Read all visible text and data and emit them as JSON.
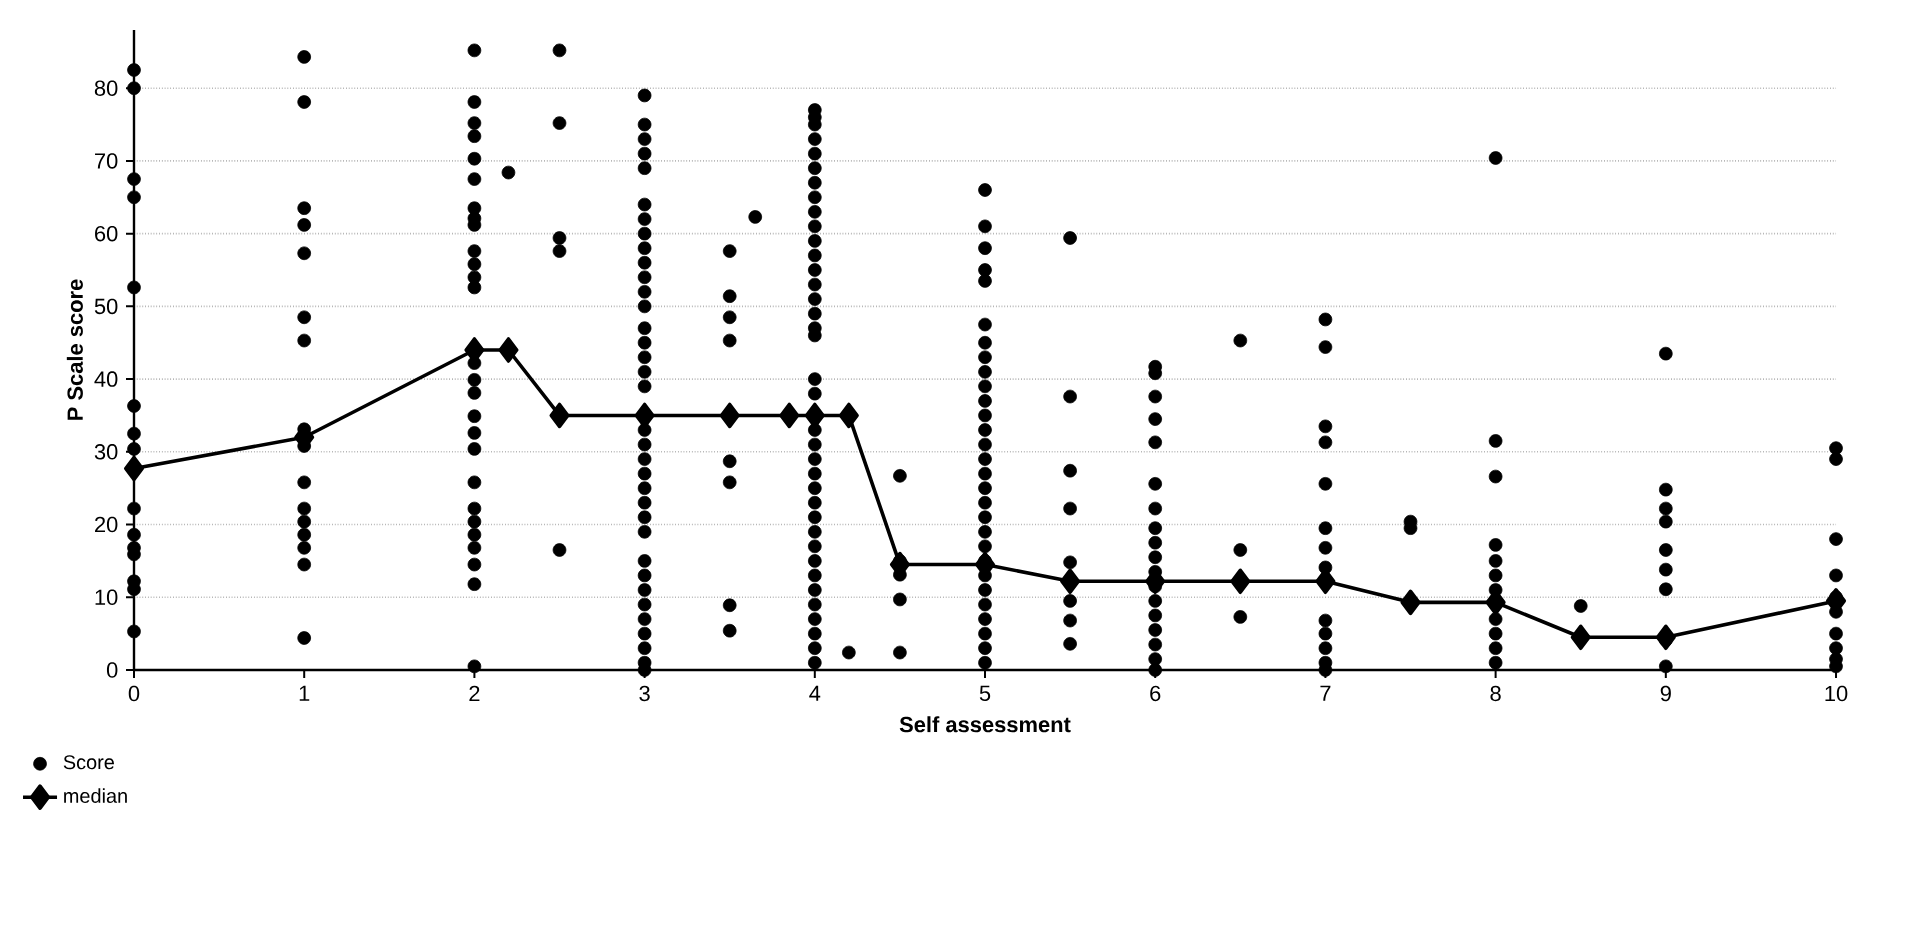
{
  "chart_data": {
    "type": "scatter",
    "xlabel": "Self assessment",
    "ylabel": "P Scale score",
    "xlim": [
      0,
      10
    ],
    "ylim": [
      0,
      88
    ],
    "xticks": [
      0,
      1,
      2,
      3,
      4,
      5,
      6,
      7,
      8,
      9,
      10
    ],
    "yticks": [
      0,
      10,
      20,
      30,
      40,
      50,
      60,
      70,
      80
    ],
    "grid": "y",
    "legend": "bottom left",
    "series": [
      {
        "name": "Score",
        "marker": "circle",
        "color": "#000000",
        "x": [
          0,
          0,
          0,
          0,
          0,
          0,
          0,
          0,
          0,
          0,
          0,
          0,
          0,
          0,
          0,
          1,
          1,
          1,
          1,
          1,
          1,
          1,
          1,
          1,
          1,
          1,
          1,
          1,
          1,
          1,
          1,
          2,
          2,
          2,
          2,
          2,
          2,
          2,
          2,
          2,
          2,
          2,
          2,
          2,
          2,
          2,
          2,
          2,
          2,
          2,
          2,
          2,
          2,
          2,
          2,
          2,
          2,
          2,
          2,
          2.2,
          2.5,
          2.5,
          2.5,
          2.5,
          2.5,
          3,
          3,
          3,
          3,
          3,
          3,
          3,
          3,
          3,
          3,
          3,
          3,
          3,
          3,
          3,
          3,
          3,
          3,
          3,
          3,
          3,
          3,
          3,
          3,
          3,
          3,
          3,
          3,
          3,
          3,
          3,
          3,
          3,
          3,
          3,
          3,
          3.5,
          3.5,
          3.5,
          3.5,
          3.5,
          3.5,
          3.5,
          3.5,
          3.65,
          4,
          4,
          4,
          4,
          4,
          4,
          4,
          4,
          4,
          4,
          4,
          4,
          4,
          4,
          4,
          4,
          4,
          4,
          4,
          4,
          4,
          4,
          4,
          4,
          4,
          4,
          4,
          4,
          4,
          4,
          4,
          4,
          4,
          4,
          4,
          4,
          4,
          4,
          4.2,
          4.5,
          4.5,
          4.5,
          4.5,
          4.5,
          5,
          5,
          5,
          5,
          5,
          5,
          5,
          5,
          5,
          5,
          5,
          5,
          5,
          5,
          5,
          5,
          5,
          5,
          5,
          5,
          5,
          5,
          5,
          5,
          5,
          5,
          5,
          5,
          5,
          5.5,
          5.5,
          5.5,
          5.5,
          5.5,
          5.5,
          5.5,
          5.5,
          5.5,
          6,
          6,
          6,
          6,
          6,
          6,
          6,
          6,
          6,
          6,
          6,
          6,
          6,
          6,
          6,
          6,
          6,
          6,
          6.5,
          6.5,
          6.5,
          7,
          7,
          7,
          7,
          7,
          7,
          7,
          7,
          7,
          7,
          7,
          7,
          7,
          7.5,
          7.5,
          8,
          8,
          8,
          8,
          8,
          8,
          8,
          8,
          8,
          8,
          8,
          8.5,
          9,
          9,
          9,
          9,
          9,
          9,
          9,
          9,
          9,
          10,
          10,
          10,
          10,
          10,
          10,
          10,
          10,
          10,
          10
        ],
        "values": [
          82.5,
          80,
          67.5,
          65,
          52.6,
          36.3,
          32.5,
          30.4,
          22.2,
          18.6,
          16.8,
          15.9,
          12.2,
          11.1,
          5.3,
          84.3,
          78.1,
          63.5,
          61.2,
          57.3,
          48.5,
          45.3,
          33.1,
          30.8,
          25.8,
          22.2,
          20.4,
          18.6,
          16.8,
          14.5,
          4.4,
          85.2,
          78.1,
          75.2,
          73.4,
          70.3,
          67.5,
          63.5,
          62.1,
          61.2,
          57.6,
          55.8,
          54,
          52.6,
          44,
          42.2,
          39.9,
          38.1,
          34.9,
          32.6,
          30.4,
          25.8,
          22.2,
          20.4,
          18.6,
          16.8,
          14.5,
          11.8,
          0.5,
          68.4,
          85.2,
          75.2,
          59.4,
          57.6,
          16.5,
          79,
          75,
          73,
          71,
          69,
          64,
          62,
          60,
          58,
          56,
          54,
          52,
          50,
          47,
          45,
          43,
          41,
          39,
          35,
          33,
          31,
          29,
          27,
          25,
          23,
          21,
          19,
          15,
          13,
          11,
          9,
          7,
          5,
          3,
          1,
          0,
          57.6,
          51.4,
          48.5,
          45.3,
          28.7,
          25.8,
          8.9,
          5.4,
          62.3,
          77,
          76,
          75,
          73,
          71,
          69,
          67,
          65,
          63,
          61,
          59,
          57,
          55,
          53,
          51,
          49,
          47,
          46,
          40,
          38,
          35,
          33,
          31,
          29,
          27,
          25,
          23,
          21,
          19,
          17,
          15,
          13,
          11,
          9,
          7,
          5,
          3,
          1,
          2.4,
          26.7,
          15,
          13.1,
          9.7,
          2.4,
          66,
          61,
          58,
          55,
          53.5,
          47.5,
          45,
          43,
          41,
          39,
          37,
          35,
          33,
          31,
          29,
          27,
          25,
          23,
          21,
          19,
          17,
          15,
          13,
          11,
          9,
          7,
          5,
          3,
          1,
          59.4,
          37.6,
          27.4,
          22.2,
          14.8,
          12.2,
          9.5,
          6.8,
          3.6,
          41.7,
          40.8,
          37.6,
          34.5,
          31.3,
          25.6,
          22.2,
          19.5,
          17.5,
          15.5,
          13.5,
          11.5,
          9.5,
          7.5,
          5.5,
          3.5,
          1.5,
          0,
          45.3,
          16.5,
          7.3,
          48.2,
          44.4,
          33.5,
          31.3,
          25.6,
          19.5,
          16.8,
          14.1,
          6.8,
          5,
          3,
          1,
          0,
          20.4,
          19.5,
          70.4,
          31.5,
          26.6,
          17.2,
          15,
          13,
          11,
          7,
          5,
          3,
          1,
          8.8,
          43.5,
          24.8,
          22.2,
          20.4,
          16.5,
          13.8,
          11.1,
          4.1,
          0.5,
          30.5,
          29,
          18,
          13,
          10,
          8,
          5,
          3,
          1.5,
          0.5
        ]
      },
      {
        "name": "median",
        "type": "line",
        "marker": "diamond",
        "line_style": "solid",
        "color": "#000000",
        "x": [
          0,
          1,
          2,
          2.2,
          2.5,
          3,
          3.5,
          3.85,
          4,
          4.2,
          4.5,
          5,
          5.5,
          6,
          6.5,
          7,
          7.5,
          8,
          8.5,
          9,
          10
        ],
        "values": [
          27.7,
          32,
          44,
          44,
          35,
          35,
          35,
          35,
          35,
          35,
          14.5,
          14.5,
          12.2,
          12.2,
          12.2,
          12.2,
          9.3,
          9.3,
          4.5,
          4.5,
          9.5
        ]
      }
    ]
  }
}
